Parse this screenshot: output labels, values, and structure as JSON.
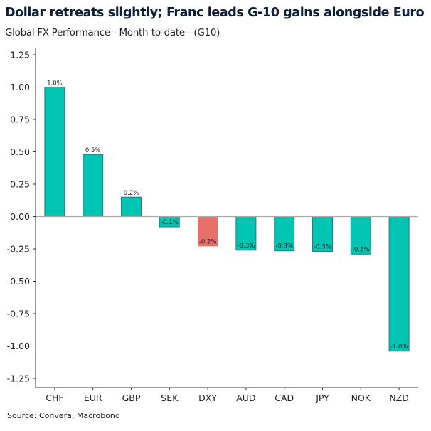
{
  "chart_data": {
    "type": "bar",
    "title": "Dollar retreats slightly; Franc leads G-10 gains alongside Euro",
    "subtitle": "Global FX Performance - Month-to-date - (G10)",
    "source": "Source: Convera, Macrobond",
    "categories": [
      "CHF",
      "EUR",
      "GBP",
      "SEK",
      "DXY",
      "AUD",
      "CAD",
      "JPY",
      "NOK",
      "NZD"
    ],
    "values": [
      1.0,
      0.48,
      0.15,
      -0.08,
      -0.23,
      -0.26,
      -0.265,
      -0.27,
      -0.29,
      -1.04
    ],
    "data_labels": [
      "1.0%",
      "0.5%",
      "0.2%",
      "-0.1%",
      "-0.2%",
      "-0.3%",
      "-0.3%",
      "-0.3%",
      "-0.3%",
      "-1.0%"
    ],
    "ylim": [
      -1.25,
      1.25
    ],
    "yticks": [
      "1.25",
      "1.00",
      "0.75",
      "0.50",
      "0.25",
      "0.00",
      "-0.25",
      "-0.50",
      "-0.75",
      "-1.00",
      "-1.25"
    ],
    "grid": false,
    "colors": {
      "default": "#00c5b2",
      "highlight": "#e8706a",
      "border": "#2a7a76"
    },
    "highlight_category": "DXY"
  }
}
